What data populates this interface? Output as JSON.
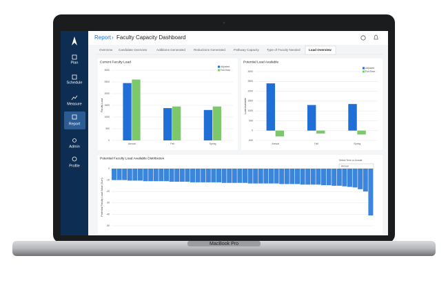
{
  "header": {
    "section": "Report",
    "title": "Faculty Capacity Dashboard"
  },
  "sidebar": [
    "Plan",
    "Schedule",
    "Measure",
    "Report",
    "Admin",
    "Profile"
  ],
  "tabs": [
    "Overview",
    "Candidate Overview",
    "Additions Generated",
    "Reductions Generated",
    "Pathway Capacity",
    "Type of Faculty Needed",
    "Load Overview"
  ],
  "filter": {
    "label": "Select Term or Annual:",
    "value": "Annual"
  },
  "laptop_label": "MacBook Pro",
  "chart_data": [
    {
      "type": "bar",
      "title": "Current Faculty Load",
      "y_label": "Faculty Load",
      "categories": [
        "Annual",
        "Fall",
        "Spring"
      ],
      "series": [
        {
          "name": "Adjusted",
          "color": "#1f6fd6",
          "values": [
            2450,
            1380,
            1300
          ]
        },
        {
          "name": "Full-Time",
          "color": "#7cc86a",
          "values": [
            2600,
            1450,
            1450
          ]
        }
      ],
      "ylim": [
        0,
        3000
      ],
      "yticks": [
        0,
        500,
        1000,
        1500,
        2000,
        2500,
        3000
      ],
      "grid": true
    },
    {
      "type": "bar",
      "title": "Potential Load Available",
      "y_label": "Load Available",
      "categories": [
        "Annual",
        "Fall",
        "Spring"
      ],
      "series": [
        {
          "name": "Adjusted",
          "color": "#1f6fd6",
          "values": [
            2400,
            1300,
            1350
          ]
        },
        {
          "name": "Full-Time",
          "color": "#7cc86a",
          "values": [
            -300,
            -150,
            -200
          ]
        }
      ],
      "ylim": [
        -500,
        3000
      ],
      "yticks": [
        -500,
        0,
        500,
        1000,
        1500,
        2000,
        2500,
        3000
      ],
      "grid": true
    },
    {
      "type": "column",
      "title": "Potential Faculty Load Available Distribution",
      "y_label": "Potential Faculty Load Value (Sum)",
      "color": "#3b86dc",
      "values": [
        -10,
        -10,
        -10,
        -10.5,
        -10.5,
        -10.5,
        -11,
        -11,
        -11,
        -11,
        -11,
        -11.5,
        -11.5,
        -11.5,
        -11.5,
        -12,
        -12,
        -12,
        -12,
        -12,
        -12,
        -12.5,
        -12.5,
        -12.5,
        -12.5,
        -12.5,
        -13,
        -13,
        -13,
        -13,
        -13,
        -13,
        -13.5,
        -13.5,
        -13.5,
        -13.5,
        -14,
        -14,
        -14,
        -14,
        -14.5,
        -14.5,
        -15,
        -15,
        -15.5,
        -16,
        -16.5,
        -18,
        -20,
        -41
      ],
      "ylim": [
        -50,
        0
      ],
      "yticks": [
        -50,
        -40,
        -30,
        -20,
        -10,
        0
      ],
      "grid": true
    }
  ]
}
